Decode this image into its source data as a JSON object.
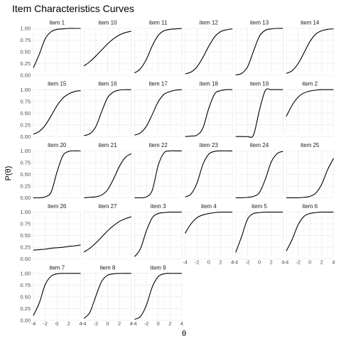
{
  "chart_data": {
    "type": "line",
    "title": "Item Characteristics Curves",
    "xlabel": "θ",
    "ylabel": "P(θ)",
    "xlim": [
      -4,
      4
    ],
    "ylim": [
      0,
      1
    ],
    "x_ticks": [
      -4,
      -2,
      0,
      2,
      4
    ],
    "x_tick_labels": [
      "-4",
      "-2",
      "0",
      "2",
      "4"
    ],
    "y_ticks": [
      0,
      0.25,
      0.5,
      0.75,
      1
    ],
    "y_tick_labels": [
      "0.00",
      "0.25",
      "0.50",
      "0.75",
      "1.00"
    ],
    "grid": true,
    "line_color": "#000000",
    "facet_columns": 6,
    "panels": [
      {
        "name": "item 1",
        "x": [
          -4,
          -3,
          -2,
          -1,
          0,
          1,
          2,
          3,
          4
        ],
        "y": [
          0.16,
          0.45,
          0.78,
          0.93,
          0.98,
          0.99,
          1.0,
          1.0,
          1.0
        ]
      },
      {
        "name": "item 10",
        "x": [
          -4,
          -3,
          -2,
          -1,
          0,
          1,
          2,
          3,
          4
        ],
        "y": [
          0.2,
          0.29,
          0.41,
          0.54,
          0.67,
          0.78,
          0.86,
          0.91,
          0.94
        ]
      },
      {
        "name": "item 11",
        "x": [
          -4,
          -3,
          -2,
          -1,
          0,
          1,
          2,
          3,
          4
        ],
        "y": [
          0.05,
          0.14,
          0.34,
          0.63,
          0.85,
          0.95,
          0.98,
          0.99,
          1.0
        ]
      },
      {
        "name": "item 12",
        "x": [
          -4,
          -3,
          -2,
          -1,
          0,
          1,
          2,
          3,
          4
        ],
        "y": [
          0.03,
          0.07,
          0.18,
          0.38,
          0.62,
          0.82,
          0.93,
          0.97,
          0.99
        ]
      },
      {
        "name": "item 13",
        "x": [
          -4,
          -3,
          -2,
          -1,
          0,
          1,
          2,
          3,
          4
        ],
        "y": [
          0.01,
          0.04,
          0.18,
          0.51,
          0.83,
          0.96,
          0.99,
          1.0,
          1.0
        ]
      },
      {
        "name": "item 14",
        "x": [
          -4,
          -3,
          -2,
          -1,
          0,
          1,
          2,
          3,
          4
        ],
        "y": [
          0.04,
          0.1,
          0.25,
          0.48,
          0.72,
          0.88,
          0.95,
          0.98,
          0.99
        ]
      },
      {
        "name": "item 15",
        "x": [
          -4,
          -3,
          -2,
          -1,
          0,
          1,
          2,
          3,
          4
        ],
        "y": [
          0.05,
          0.11,
          0.24,
          0.44,
          0.66,
          0.82,
          0.91,
          0.96,
          0.98
        ]
      },
      {
        "name": "item 16",
        "x": [
          -4,
          -3,
          -2,
          -1,
          0,
          1,
          2,
          3,
          4
        ],
        "y": [
          0.02,
          0.06,
          0.21,
          0.53,
          0.83,
          0.95,
          0.99,
          1.0,
          1.0
        ]
      },
      {
        "name": "item 17",
        "x": [
          -4,
          -3,
          -2,
          -1,
          0,
          1,
          2,
          3,
          4
        ],
        "y": [
          0.03,
          0.08,
          0.22,
          0.47,
          0.74,
          0.9,
          0.96,
          0.99,
          1.0
        ]
      },
      {
        "name": "item 18",
        "x": [
          -4,
          -3,
          -2,
          -1,
          0,
          1,
          2,
          3,
          4
        ],
        "y": [
          0.0,
          0.01,
          0.03,
          0.18,
          0.6,
          0.91,
          0.98,
          1.0,
          1.0
        ]
      },
      {
        "name": "item 19",
        "x": [
          -4,
          -3,
          -2,
          -1,
          0,
          1,
          2,
          3,
          4
        ],
        "y": [
          0.0,
          0.0,
          0.0,
          0.03,
          0.55,
          0.98,
          1.0,
          1.0,
          1.0
        ]
      },
      {
        "name": "item 2",
        "x": [
          -4,
          -3,
          -2,
          -1,
          0,
          1,
          2,
          3,
          4
        ],
        "y": [
          0.43,
          0.67,
          0.84,
          0.93,
          0.97,
          0.99,
          1.0,
          1.0,
          1.0
        ]
      },
      {
        "name": "item 20",
        "x": [
          -4,
          -3,
          -2,
          -1,
          0,
          1,
          2,
          3,
          4
        ],
        "y": [
          0.0,
          0.0,
          0.02,
          0.12,
          0.55,
          0.9,
          0.99,
          1.0,
          1.0
        ]
      },
      {
        "name": "item 21",
        "x": [
          -4,
          -3,
          -2,
          -1,
          0,
          1,
          2,
          3,
          4
        ],
        "y": [
          0.0,
          0.01,
          0.02,
          0.06,
          0.17,
          0.4,
          0.67,
          0.86,
          0.94
        ]
      },
      {
        "name": "item 22",
        "x": [
          -4,
          -3,
          -2,
          -1,
          0,
          1,
          2,
          3,
          4
        ],
        "y": [
          0.0,
          0.0,
          0.02,
          0.16,
          0.69,
          0.96,
          1.0,
          1.0,
          1.0
        ]
      },
      {
        "name": "item 23",
        "x": [
          -4,
          -3,
          -2,
          -1,
          0,
          1,
          2,
          3,
          4
        ],
        "y": [
          0.02,
          0.08,
          0.31,
          0.71,
          0.93,
          0.99,
          1.0,
          1.0,
          1.0
        ]
      },
      {
        "name": "item 24",
        "x": [
          -4,
          -3,
          -2,
          -1,
          0,
          1,
          2,
          3,
          4
        ],
        "y": [
          0.0,
          0.0,
          0.01,
          0.03,
          0.11,
          0.39,
          0.76,
          0.94,
          0.99
        ]
      },
      {
        "name": "item 25",
        "x": [
          -4,
          -3,
          -2,
          -1,
          0,
          1,
          2,
          3,
          4
        ],
        "y": [
          0.0,
          0.0,
          0.0,
          0.01,
          0.03,
          0.1,
          0.29,
          0.6,
          0.84
        ]
      },
      {
        "name": "item 26",
        "x": [
          -4,
          -3,
          -2,
          -1,
          0,
          1,
          2,
          3,
          4
        ],
        "y": [
          0.19,
          0.2,
          0.21,
          0.23,
          0.24,
          0.25,
          0.27,
          0.28,
          0.3
        ]
      },
      {
        "name": "item 27",
        "x": [
          -4,
          -3,
          -2,
          -1,
          0,
          1,
          2,
          3,
          4
        ],
        "y": [
          0.15,
          0.23,
          0.34,
          0.47,
          0.6,
          0.71,
          0.8,
          0.86,
          0.9
        ]
      },
      {
        "name": "item 3",
        "x": [
          -4,
          -3,
          -2,
          -1,
          0,
          1,
          2,
          3,
          4
        ],
        "y": [
          0.05,
          0.22,
          0.6,
          0.88,
          0.97,
          0.99,
          1.0,
          1.0,
          1.0
        ]
      },
      {
        "name": "item 4",
        "x": [
          -4,
          -3,
          -2,
          -1,
          0,
          1,
          2,
          3,
          4
        ],
        "y": [
          0.55,
          0.75,
          0.88,
          0.94,
          0.97,
          0.99,
          1.0,
          1.0,
          1.0
        ]
      },
      {
        "name": "item 5",
        "x": [
          -4,
          -3,
          -2,
          -1,
          0,
          1,
          2,
          3,
          4
        ],
        "y": [
          0.14,
          0.48,
          0.85,
          0.97,
          0.99,
          1.0,
          1.0,
          1.0,
          1.0
        ]
      },
      {
        "name": "item 6",
        "x": [
          -4,
          -3,
          -2,
          -1,
          0,
          1,
          2,
          3,
          4
        ],
        "y": [
          0.17,
          0.42,
          0.73,
          0.91,
          0.97,
          0.99,
          1.0,
          1.0,
          1.0
        ]
      },
      {
        "name": "item 7",
        "x": [
          -4,
          -3,
          -2,
          -1,
          0,
          1,
          2,
          3,
          4
        ],
        "y": [
          0.1,
          0.37,
          0.76,
          0.94,
          0.99,
          1.0,
          1.0,
          1.0,
          1.0
        ]
      },
      {
        "name": "item 8",
        "x": [
          -4,
          -3,
          -2,
          -1,
          0,
          1,
          2,
          3,
          4
        ],
        "y": [
          0.04,
          0.17,
          0.51,
          0.83,
          0.96,
          0.99,
          1.0,
          1.0,
          1.0
        ]
      },
      {
        "name": "item 9",
        "x": [
          -4,
          -3,
          -2,
          -1,
          0,
          1,
          2,
          3,
          4
        ],
        "y": [
          0.02,
          0.08,
          0.32,
          0.71,
          0.93,
          0.99,
          1.0,
          1.0,
          1.0
        ]
      }
    ]
  }
}
